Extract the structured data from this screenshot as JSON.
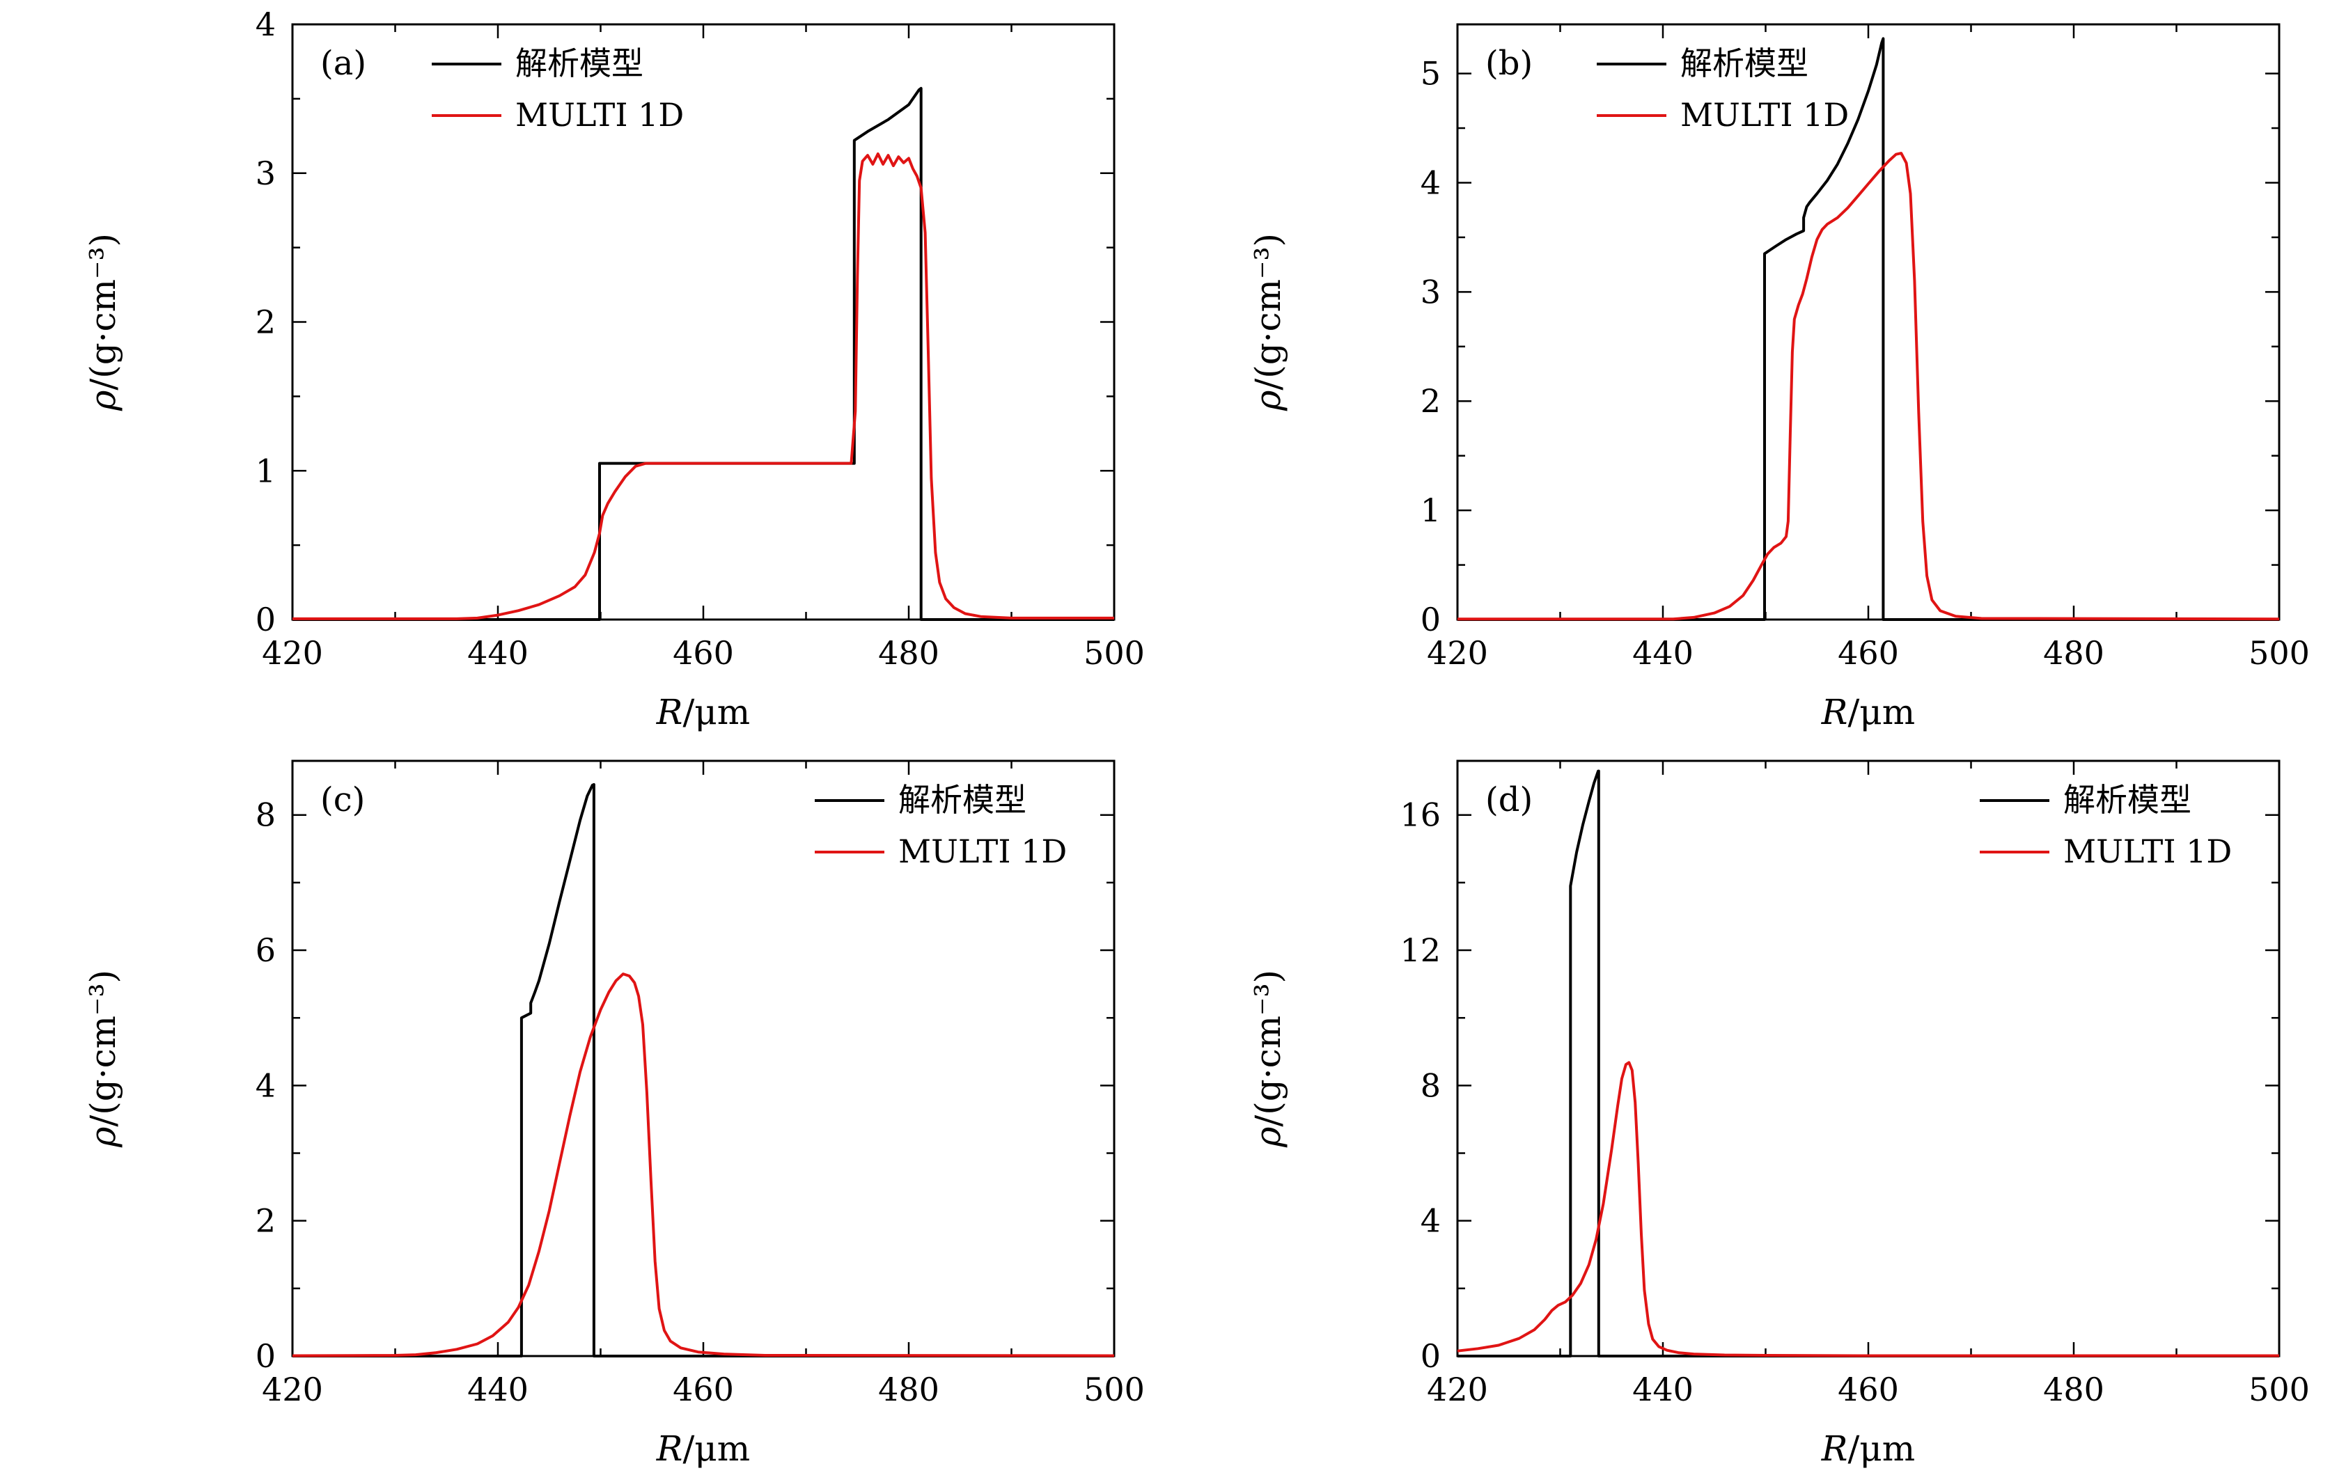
{
  "figure": {
    "background": "#ffffff",
    "legend_labels": {
      "analytic": "解析模型",
      "simulation": "MULTI 1D"
    },
    "colors": {
      "analytic": "#000000",
      "simulation": "#e01414"
    }
  },
  "chart_data": [
    {
      "type": "line",
      "panel": "(a)",
      "xlabel": "R/μm",
      "ylabel": "ρ/(g·cm⁻³)",
      "xlim": [
        420,
        500
      ],
      "ylim": [
        0,
        4
      ],
      "xticks": [
        420,
        440,
        460,
        480,
        500
      ],
      "xminor": 10,
      "yticks": [
        0,
        1,
        2,
        3,
        4
      ],
      "yminor": 0.5,
      "grid": false,
      "legend_pos": "top-left",
      "series": [
        {
          "name": "解析模型",
          "color": "#000000",
          "points": [
            [
              420,
              0
            ],
            [
              449.9,
              0
            ],
            [
              449.9,
              1.05
            ],
            [
              474.7,
              1.05
            ],
            [
              474.7,
              3.22
            ],
            [
              476,
              3.28
            ],
            [
              478,
              3.36
            ],
            [
              480,
              3.46
            ],
            [
              481,
              3.56
            ],
            [
              481.2,
              3.57
            ],
            [
              481.2,
              0
            ],
            [
              500,
              0
            ]
          ]
        },
        {
          "name": "MULTI 1D",
          "color": "#e01414",
          "points": [
            [
              420,
              0.005
            ],
            [
              436,
              0.005
            ],
            [
              438,
              0.01
            ],
            [
              440,
              0.03
            ],
            [
              442,
              0.06
            ],
            [
              444,
              0.1
            ],
            [
              446,
              0.16
            ],
            [
              447.5,
              0.22
            ],
            [
              448.5,
              0.3
            ],
            [
              449.4,
              0.45
            ],
            [
              449.9,
              0.58
            ],
            [
              450.2,
              0.7
            ],
            [
              450.7,
              0.78
            ],
            [
              451.4,
              0.86
            ],
            [
              452.4,
              0.96
            ],
            [
              453.4,
              1.03
            ],
            [
              454.4,
              1.05
            ],
            [
              474.4,
              1.05
            ],
            [
              474.8,
              1.4
            ],
            [
              475,
              2.3
            ],
            [
              475.2,
              2.95
            ],
            [
              475.5,
              3.08
            ],
            [
              476,
              3.12
            ],
            [
              476.5,
              3.06
            ],
            [
              477,
              3.13
            ],
            [
              477.5,
              3.06
            ],
            [
              478,
              3.12
            ],
            [
              478.5,
              3.05
            ],
            [
              479,
              3.11
            ],
            [
              479.5,
              3.07
            ],
            [
              480,
              3.1
            ],
            [
              480.4,
              3.03
            ],
            [
              480.8,
              2.98
            ],
            [
              481.2,
              2.9
            ],
            [
              481.6,
              2.6
            ],
            [
              481.9,
              1.8
            ],
            [
              482.2,
              0.95
            ],
            [
              482.6,
              0.45
            ],
            [
              483,
              0.25
            ],
            [
              483.6,
              0.14
            ],
            [
              484.4,
              0.08
            ],
            [
              485.5,
              0.04
            ],
            [
              487,
              0.02
            ],
            [
              490,
              0.01
            ],
            [
              500,
              0.01
            ]
          ]
        }
      ]
    },
    {
      "type": "line",
      "panel": "(b)",
      "xlabel": "R/μm",
      "ylabel": "ρ/(g·cm⁻³)",
      "xlim": [
        420,
        500
      ],
      "ylim": [
        0,
        5.45
      ],
      "xticks": [
        420,
        440,
        460,
        480,
        500
      ],
      "xminor": 10,
      "yticks": [
        0,
        1,
        2,
        3,
        4,
        5
      ],
      "yminor": 0.5,
      "grid": false,
      "legend_pos": "top-left",
      "series": [
        {
          "name": "解析模型",
          "color": "#000000",
          "points": [
            [
              420,
              0
            ],
            [
              449.9,
              0
            ],
            [
              449.9,
              3.35
            ],
            [
              451,
              3.42
            ],
            [
              452,
              3.48
            ],
            [
              453,
              3.53
            ],
            [
              453.7,
              3.56
            ],
            [
              453.7,
              3.68
            ],
            [
              454,
              3.78
            ],
            [
              454.3,
              3.82
            ],
            [
              455,
              3.9
            ],
            [
              456,
              4.02
            ],
            [
              457,
              4.17
            ],
            [
              458,
              4.36
            ],
            [
              459,
              4.58
            ],
            [
              460,
              4.84
            ],
            [
              460.8,
              5.08
            ],
            [
              461.3,
              5.28
            ],
            [
              461.45,
              5.32
            ],
            [
              461.45,
              0
            ],
            [
              500,
              0
            ]
          ]
        },
        {
          "name": "MULTI 1D",
          "color": "#e01414",
          "points": [
            [
              420,
              0.005
            ],
            [
              441,
              0.005
            ],
            [
              443,
              0.02
            ],
            [
              445,
              0.06
            ],
            [
              446.5,
              0.12
            ],
            [
              447.8,
              0.22
            ],
            [
              448.8,
              0.36
            ],
            [
              449.6,
              0.5
            ],
            [
              450.2,
              0.6
            ],
            [
              450.8,
              0.66
            ],
            [
              451.5,
              0.7
            ],
            [
              452,
              0.76
            ],
            [
              452.2,
              0.9
            ],
            [
              452.4,
              1.7
            ],
            [
              452.6,
              2.45
            ],
            [
              452.8,
              2.75
            ],
            [
              453.2,
              2.88
            ],
            [
              453.6,
              2.98
            ],
            [
              454,
              3.12
            ],
            [
              454.5,
              3.32
            ],
            [
              455,
              3.48
            ],
            [
              455.5,
              3.57
            ],
            [
              456,
              3.62
            ],
            [
              457,
              3.68
            ],
            [
              458,
              3.77
            ],
            [
              459,
              3.88
            ],
            [
              460,
              3.99
            ],
            [
              461,
              4.1
            ],
            [
              462,
              4.2
            ],
            [
              462.7,
              4.26
            ],
            [
              463.2,
              4.27
            ],
            [
              463.7,
              4.18
            ],
            [
              464.1,
              3.9
            ],
            [
              464.5,
              3.1
            ],
            [
              464.9,
              1.9
            ],
            [
              465.3,
              0.9
            ],
            [
              465.7,
              0.4
            ],
            [
              466.2,
              0.18
            ],
            [
              467,
              0.08
            ],
            [
              468.5,
              0.03
            ],
            [
              471,
              0.01
            ],
            [
              500,
              0.005
            ]
          ]
        }
      ]
    },
    {
      "type": "line",
      "panel": "(c)",
      "xlabel": "R/μm",
      "ylabel": "ρ/(g·cm⁻³)",
      "xlim": [
        420,
        500
      ],
      "ylim": [
        0,
        8.8
      ],
      "xticks": [
        420,
        440,
        460,
        480,
        500
      ],
      "xminor": 10,
      "yticks": [
        0,
        2,
        4,
        6,
        8
      ],
      "yminor": 1,
      "grid": false,
      "legend_pos": "top-right",
      "series": [
        {
          "name": "解析模型",
          "color": "#000000",
          "points": [
            [
              420,
              0
            ],
            [
              442.3,
              0
            ],
            [
              442.3,
              5.0
            ],
            [
              443.2,
              5.07
            ],
            [
              443.2,
              5.22
            ],
            [
              443.6,
              5.38
            ],
            [
              444,
              5.55
            ],
            [
              445,
              6.1
            ],
            [
              446,
              6.72
            ],
            [
              447,
              7.32
            ],
            [
              448,
              7.92
            ],
            [
              448.7,
              8.28
            ],
            [
              449.2,
              8.44
            ],
            [
              449.35,
              8.45
            ],
            [
              449.35,
              0
            ],
            [
              500,
              0
            ]
          ]
        },
        {
          "name": "MULTI 1D",
          "color": "#e01414",
          "points": [
            [
              420,
              0.005
            ],
            [
              430,
              0.01
            ],
            [
              432,
              0.02
            ],
            [
              434,
              0.05
            ],
            [
              436,
              0.1
            ],
            [
              438,
              0.18
            ],
            [
              439.5,
              0.3
            ],
            [
              441,
              0.5
            ],
            [
              442,
              0.72
            ],
            [
              443,
              1.05
            ],
            [
              444,
              1.55
            ],
            [
              445,
              2.15
            ],
            [
              446,
              2.85
            ],
            [
              447,
              3.55
            ],
            [
              448,
              4.2
            ],
            [
              449,
              4.72
            ],
            [
              450,
              5.12
            ],
            [
              450.8,
              5.38
            ],
            [
              451.5,
              5.55
            ],
            [
              452.2,
              5.65
            ],
            [
              452.8,
              5.62
            ],
            [
              453.3,
              5.52
            ],
            [
              453.7,
              5.32
            ],
            [
              454.1,
              4.9
            ],
            [
              454.5,
              3.9
            ],
            [
              454.9,
              2.6
            ],
            [
              455.3,
              1.4
            ],
            [
              455.7,
              0.7
            ],
            [
              456.2,
              0.38
            ],
            [
              456.8,
              0.22
            ],
            [
              457.8,
              0.12
            ],
            [
              459.5,
              0.06
            ],
            [
              462,
              0.03
            ],
            [
              466,
              0.01
            ],
            [
              500,
              0.005
            ]
          ]
        }
      ]
    },
    {
      "type": "line",
      "panel": "(d)",
      "xlabel": "R/μm",
      "ylabel": "ρ/(g·cm⁻³)",
      "xlim": [
        420,
        500
      ],
      "ylim": [
        0,
        17.6
      ],
      "xticks": [
        420,
        440,
        460,
        480,
        500
      ],
      "xminor": 10,
      "yticks": [
        0,
        4,
        8,
        12,
        16
      ],
      "yminor": 2,
      "grid": false,
      "legend_pos": "top-right",
      "series": [
        {
          "name": "解析模型",
          "color": "#000000",
          "points": [
            [
              420,
              0
            ],
            [
              431,
              0
            ],
            [
              431,
              13.9
            ],
            [
              431.6,
              14.9
            ],
            [
              432.2,
              15.7
            ],
            [
              432.8,
              16.4
            ],
            [
              433.3,
              16.95
            ],
            [
              433.7,
              17.3
            ],
            [
              433.75,
              17.3
            ],
            [
              433.75,
              0
            ],
            [
              500,
              0
            ]
          ]
        },
        {
          "name": "MULTI 1D",
          "color": "#e01414",
          "points": [
            [
              420,
              0.15
            ],
            [
              422,
              0.22
            ],
            [
              424,
              0.32
            ],
            [
              426,
              0.52
            ],
            [
              427.5,
              0.78
            ],
            [
              428.5,
              1.08
            ],
            [
              429.2,
              1.35
            ],
            [
              429.8,
              1.5
            ],
            [
              430.5,
              1.6
            ],
            [
              431.2,
              1.8
            ],
            [
              432,
              2.15
            ],
            [
              432.8,
              2.7
            ],
            [
              433.5,
              3.45
            ],
            [
              434.2,
              4.5
            ],
            [
              435,
              6.1
            ],
            [
              435.6,
              7.4
            ],
            [
              436,
              8.2
            ],
            [
              436.4,
              8.62
            ],
            [
              436.7,
              8.68
            ],
            [
              437,
              8.45
            ],
            [
              437.3,
              7.5
            ],
            [
              437.6,
              5.7
            ],
            [
              437.9,
              3.6
            ],
            [
              438.2,
              1.95
            ],
            [
              438.6,
              0.95
            ],
            [
              439,
              0.5
            ],
            [
              439.6,
              0.28
            ],
            [
              440.4,
              0.17
            ],
            [
              441.5,
              0.1
            ],
            [
              443,
              0.06
            ],
            [
              446,
              0.03
            ],
            [
              450,
              0.02
            ],
            [
              460,
              0.01
            ],
            [
              500,
              0.01
            ]
          ]
        }
      ]
    }
  ]
}
